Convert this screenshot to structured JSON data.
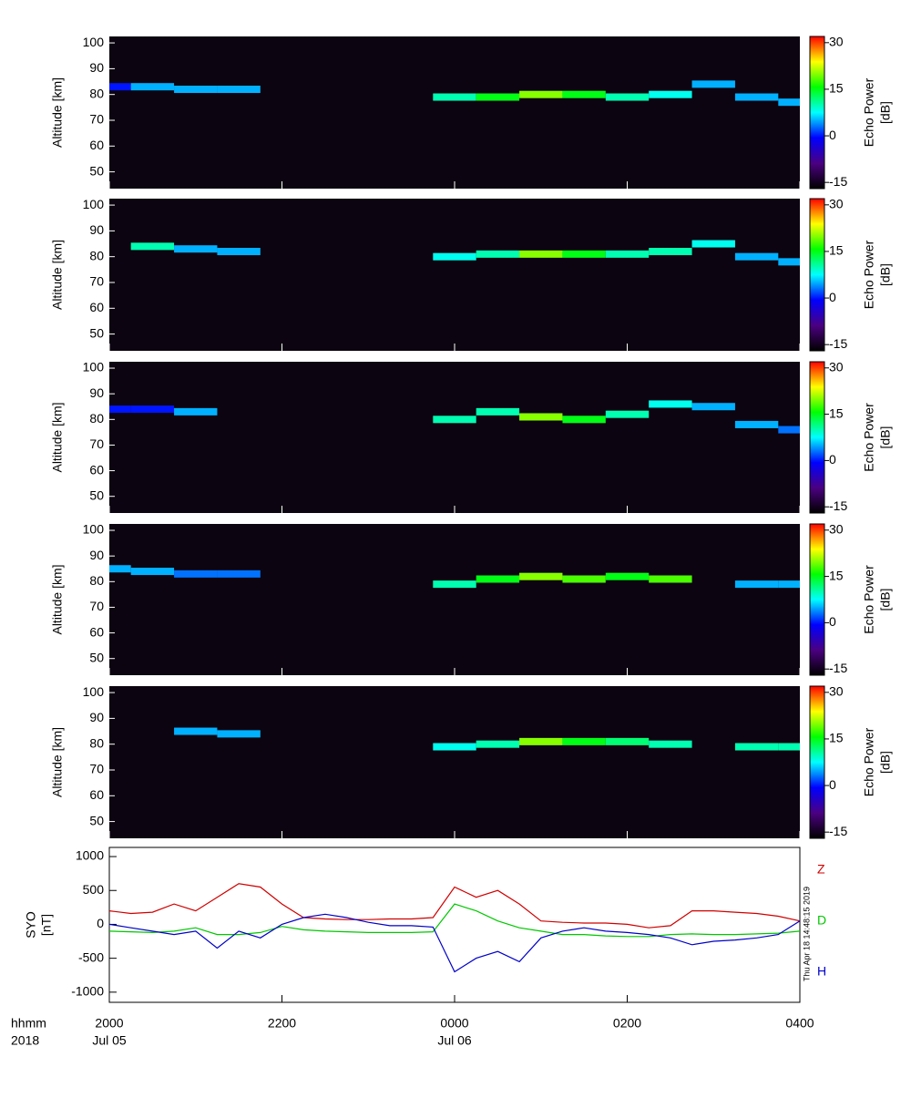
{
  "chart_data": [
    {
      "type": "heatmap",
      "ylabel": "Altitude [km]",
      "colorbar_label": [
        "Echo Power",
        "[dB]"
      ],
      "xlim": [
        0,
        8
      ],
      "ylim": [
        43.5,
        102.5
      ],
      "yticks": [
        50,
        60,
        70,
        80,
        90,
        100
      ],
      "clim": [
        -17,
        32
      ],
      "cticks": [
        -15,
        0,
        15,
        30
      ],
      "colormap": [
        "#000000",
        "#4b0082",
        "#0000ff",
        "#00ffff",
        "#00ff00",
        "#ffff00",
        "#ff0000"
      ],
      "x": [
        0,
        0.5,
        1,
        1.5,
        2,
        2.5,
        3,
        3.5,
        4,
        4.5,
        5,
        5.5,
        6,
        6.5,
        7,
        7.5,
        8
      ],
      "altitude": [
        83,
        83,
        82,
        82,
        null,
        null,
        null,
        null,
        79,
        79,
        80,
        80,
        79,
        80,
        84,
        79,
        77
      ],
      "values": [
        0,
        5,
        5,
        5,
        null,
        null,
        null,
        null,
        10,
        15,
        20,
        15,
        10,
        8,
        5,
        5,
        5
      ]
    },
    {
      "type": "heatmap",
      "ylabel": "Altitude [km]",
      "colorbar_label": [
        "Echo Power",
        "[dB]"
      ],
      "xlim": [
        0,
        8
      ],
      "ylim": [
        43.5,
        102.5
      ],
      "yticks": [
        50,
        60,
        70,
        80,
        90,
        100
      ],
      "clim": [
        -17,
        32
      ],
      "cticks": [
        -15,
        0,
        15,
        30
      ],
      "colormap": [
        "#000000",
        "#4b0082",
        "#0000ff",
        "#00ffff",
        "#00ff00",
        "#ffff00",
        "#ff0000"
      ],
      "x": [
        0,
        0.5,
        1,
        1.5,
        2,
        2.5,
        3,
        3.5,
        4,
        4.5,
        5,
        5.5,
        6,
        6.5,
        7,
        7.5,
        8
      ],
      "altitude": [
        null,
        84,
        83,
        82,
        null,
        null,
        null,
        null,
        80,
        81,
        81,
        81,
        81,
        82,
        85,
        80,
        78
      ],
      "values": [
        null,
        10,
        5,
        5,
        null,
        null,
        null,
        null,
        8,
        10,
        20,
        15,
        10,
        10,
        8,
        5,
        5
      ]
    },
    {
      "type": "heatmap",
      "ylabel": "Altitude [km]",
      "colorbar_label": [
        "Echo Power",
        "[dB]"
      ],
      "xlim": [
        0,
        8
      ],
      "ylim": [
        43.5,
        102.5
      ],
      "yticks": [
        50,
        60,
        70,
        80,
        90,
        100
      ],
      "clim": [
        -17,
        32
      ],
      "cticks": [
        -15,
        0,
        15,
        30
      ],
      "colormap": [
        "#000000",
        "#4b0082",
        "#0000ff",
        "#00ffff",
        "#00ff00",
        "#ffff00",
        "#ff0000"
      ],
      "x": [
        0,
        0.5,
        1,
        1.5,
        2,
        2.5,
        3,
        3.5,
        4,
        4.5,
        5,
        5.5,
        6,
        6.5,
        7,
        7.5,
        8
      ],
      "altitude": [
        84,
        84,
        83,
        null,
        null,
        null,
        null,
        null,
        80,
        83,
        81,
        80,
        82,
        86,
        85,
        78,
        76
      ],
      "values": [
        0,
        0,
        5,
        null,
        null,
        null,
        null,
        null,
        10,
        10,
        20,
        15,
        10,
        8,
        5,
        5,
        3
      ]
    },
    {
      "type": "heatmap",
      "ylabel": "Altitude [km]",
      "colorbar_label": [
        "Echo Power",
        "[dB]"
      ],
      "xlim": [
        0,
        8
      ],
      "ylim": [
        43.5,
        102.5
      ],
      "yticks": [
        50,
        60,
        70,
        80,
        90,
        100
      ],
      "clim": [
        -17,
        32
      ],
      "cticks": [
        -15,
        0,
        15,
        30
      ],
      "colormap": [
        "#000000",
        "#4b0082",
        "#0000ff",
        "#00ffff",
        "#00ff00",
        "#ffff00",
        "#ff0000"
      ],
      "x": [
        0,
        0.5,
        1,
        1.5,
        2,
        2.5,
        3,
        3.5,
        4,
        4.5,
        5,
        5.5,
        6,
        6.5,
        7,
        7.5,
        8
      ],
      "altitude": [
        85,
        84,
        83,
        83,
        null,
        null,
        null,
        null,
        79,
        81,
        82,
        81,
        82,
        81,
        null,
        79,
        79
      ],
      "values": [
        5,
        5,
        3,
        3,
        null,
        null,
        null,
        null,
        10,
        15,
        20,
        18,
        15,
        18,
        null,
        5,
        5
      ]
    },
    {
      "type": "heatmap",
      "ylabel": "Altitude [km]",
      "colorbar_label": [
        "Echo Power",
        "[dB]"
      ],
      "xlim": [
        0,
        8
      ],
      "ylim": [
        43.5,
        102.5
      ],
      "yticks": [
        50,
        60,
        70,
        80,
        90,
        100
      ],
      "clim": [
        -17,
        32
      ],
      "cticks": [
        -15,
        0,
        15,
        30
      ],
      "colormap": [
        "#000000",
        "#4b0082",
        "#0000ff",
        "#00ffff",
        "#00ff00",
        "#ffff00",
        "#ff0000"
      ],
      "x": [
        0,
        0.5,
        1,
        1.5,
        2,
        2.5,
        3,
        3.5,
        4,
        4.5,
        5,
        5.5,
        6,
        6.5,
        7,
        7.5,
        8
      ],
      "altitude": [
        null,
        null,
        85,
        84,
        null,
        null,
        null,
        null,
        79,
        80,
        81,
        81,
        81,
        80,
        null,
        79,
        79
      ],
      "values": [
        null,
        null,
        5,
        5,
        null,
        null,
        null,
        null,
        8,
        10,
        20,
        15,
        12,
        10,
        null,
        10,
        10
      ]
    },
    {
      "type": "line",
      "ylabel": [
        "SYO",
        "[nT]"
      ],
      "annotation": "Thu Apr 18 14:48:15 2019",
      "xlim": [
        0,
        8
      ],
      "ylim": [
        -1150,
        1135
      ],
      "yticks": [
        -1000,
        -500,
        0,
        500,
        1000
      ],
      "xticks": [
        {
          "value": 0,
          "label": "2000"
        },
        {
          "value": 2,
          "label": "2200"
        },
        {
          "value": 4,
          "label": "0000"
        },
        {
          "value": 6,
          "label": "0200"
        },
        {
          "value": 8,
          "label": "0400"
        }
      ],
      "date_ticks": [
        {
          "value": 0,
          "label": "Jul 05"
        },
        {
          "value": 4,
          "label": "Jul 06"
        }
      ],
      "axis_labels": [
        "hhmm",
        "2018"
      ],
      "x": [
        0,
        0.25,
        0.5,
        0.75,
        1,
        1.25,
        1.5,
        1.75,
        2,
        2.25,
        2.5,
        2.75,
        3,
        3.25,
        3.5,
        3.75,
        4,
        4.25,
        4.5,
        4.75,
        5,
        5.25,
        5.5,
        5.75,
        6,
        6.25,
        6.5,
        6.75,
        7,
        7.25,
        7.5,
        7.75,
        8
      ],
      "series": [
        {
          "name": "Z",
          "color": "#d00000",
          "values": [
            200,
            160,
            180,
            300,
            200,
            400,
            600,
            550,
            300,
            100,
            80,
            70,
            70,
            80,
            80,
            100,
            550,
            400,
            500,
            300,
            50,
            30,
            20,
            20,
            0,
            -50,
            -20,
            200,
            200,
            180,
            160,
            120,
            50
          ]
        },
        {
          "name": "D",
          "color": "#00c800",
          "values": [
            -100,
            -110,
            -120,
            -100,
            -50,
            -150,
            -150,
            -120,
            -30,
            -80,
            -100,
            -110,
            -120,
            -120,
            -120,
            -110,
            300,
            200,
            50,
            -50,
            -100,
            -150,
            -150,
            -170,
            -180,
            -180,
            -150,
            -140,
            -150,
            -150,
            -140,
            -130,
            -100
          ]
        },
        {
          "name": "H",
          "color": "#0000c8",
          "values": [
            0,
            -50,
            -100,
            -150,
            -100,
            -350,
            -100,
            -200,
            0,
            100,
            150,
            100,
            30,
            -20,
            -20,
            -40,
            -700,
            -500,
            -400,
            -550,
            -200,
            -100,
            -50,
            -100,
            -120,
            -150,
            -200,
            -300,
            -250,
            -230,
            -200,
            -150,
            50
          ]
        }
      ]
    }
  ]
}
